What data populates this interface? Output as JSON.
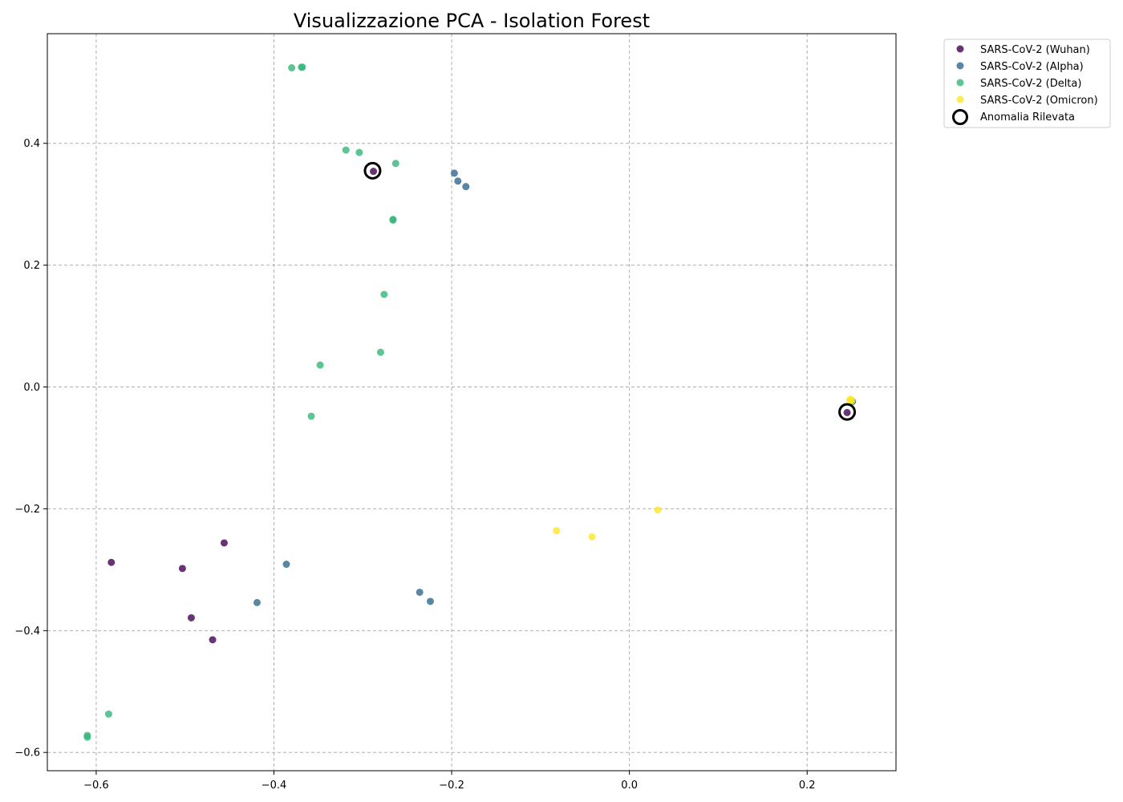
{
  "chart_data": {
    "type": "scatter",
    "title": "Visualizzazione PCA - Isolation Forest",
    "xlabel": "",
    "ylabel": "",
    "xlim": [
      -0.655,
      0.3
    ],
    "ylim": [
      -0.63,
      0.58
    ],
    "x_ticks": [
      -0.6,
      -0.4,
      -0.2,
      0.0,
      0.2
    ],
    "x_tick_labels": [
      "−0.6",
      "−0.4",
      "−0.2",
      "0.0",
      "0.2"
    ],
    "y_ticks": [
      -0.6,
      -0.4,
      -0.2,
      0.0,
      0.2,
      0.4
    ],
    "y_tick_labels": [
      "−0.6",
      "−0.4",
      "−0.2",
      "0.0",
      "0.2",
      "0.4"
    ],
    "grid": true,
    "grid_style": "dashed",
    "legend_position": "outside-top-right",
    "series": [
      {
        "name": "SARS-CoV-2 (Wuhan)",
        "color": "#440154",
        "points": [
          [
            -0.288,
            0.354
          ],
          [
            -0.583,
            -0.288
          ],
          [
            -0.503,
            -0.298
          ],
          [
            -0.456,
            -0.256
          ],
          [
            -0.493,
            -0.379
          ],
          [
            -0.469,
            -0.415
          ],
          [
            0.245,
            -0.042
          ]
        ]
      },
      {
        "name": "SARS-CoV-2 (Alpha)",
        "color": "#31688e",
        "points": [
          [
            -0.197,
            0.351
          ],
          [
            -0.193,
            0.338
          ],
          [
            -0.184,
            0.329
          ],
          [
            -0.386,
            -0.291
          ],
          [
            -0.419,
            -0.354
          ],
          [
            -0.236,
            -0.337
          ],
          [
            -0.224,
            -0.352
          ],
          [
            0.251,
            -0.024
          ]
        ]
      },
      {
        "name": "SARS-CoV-2 (Delta)",
        "color": "#35b779",
        "points": [
          [
            -0.38,
            0.524
          ],
          [
            -0.369,
            0.525
          ],
          [
            -0.368,
            0.525
          ],
          [
            -0.319,
            0.389
          ],
          [
            -0.304,
            0.385
          ],
          [
            -0.263,
            0.367
          ],
          [
            -0.266,
            0.274
          ],
          [
            -0.266,
            0.275
          ],
          [
            -0.276,
            0.152
          ],
          [
            -0.28,
            0.057
          ],
          [
            -0.348,
            0.036
          ],
          [
            -0.358,
            -0.048
          ],
          [
            -0.586,
            -0.537
          ],
          [
            -0.61,
            -0.575
          ],
          [
            -0.61,
            -0.572
          ]
        ]
      },
      {
        "name": "SARS-CoV-2 (Omicron)",
        "color": "#fde725",
        "points": [
          [
            0.032,
            -0.202
          ],
          [
            -0.082,
            -0.236
          ],
          [
            -0.042,
            -0.246
          ],
          [
            0.249,
            -0.02
          ],
          [
            0.25,
            -0.023
          ],
          [
            0.248,
            -0.022
          ]
        ]
      }
    ],
    "anomalies": {
      "name": "Anomalia Rilevata",
      "color": "#000000",
      "points": [
        [
          -0.289,
          0.355
        ],
        [
          0.245,
          -0.041
        ]
      ]
    }
  }
}
